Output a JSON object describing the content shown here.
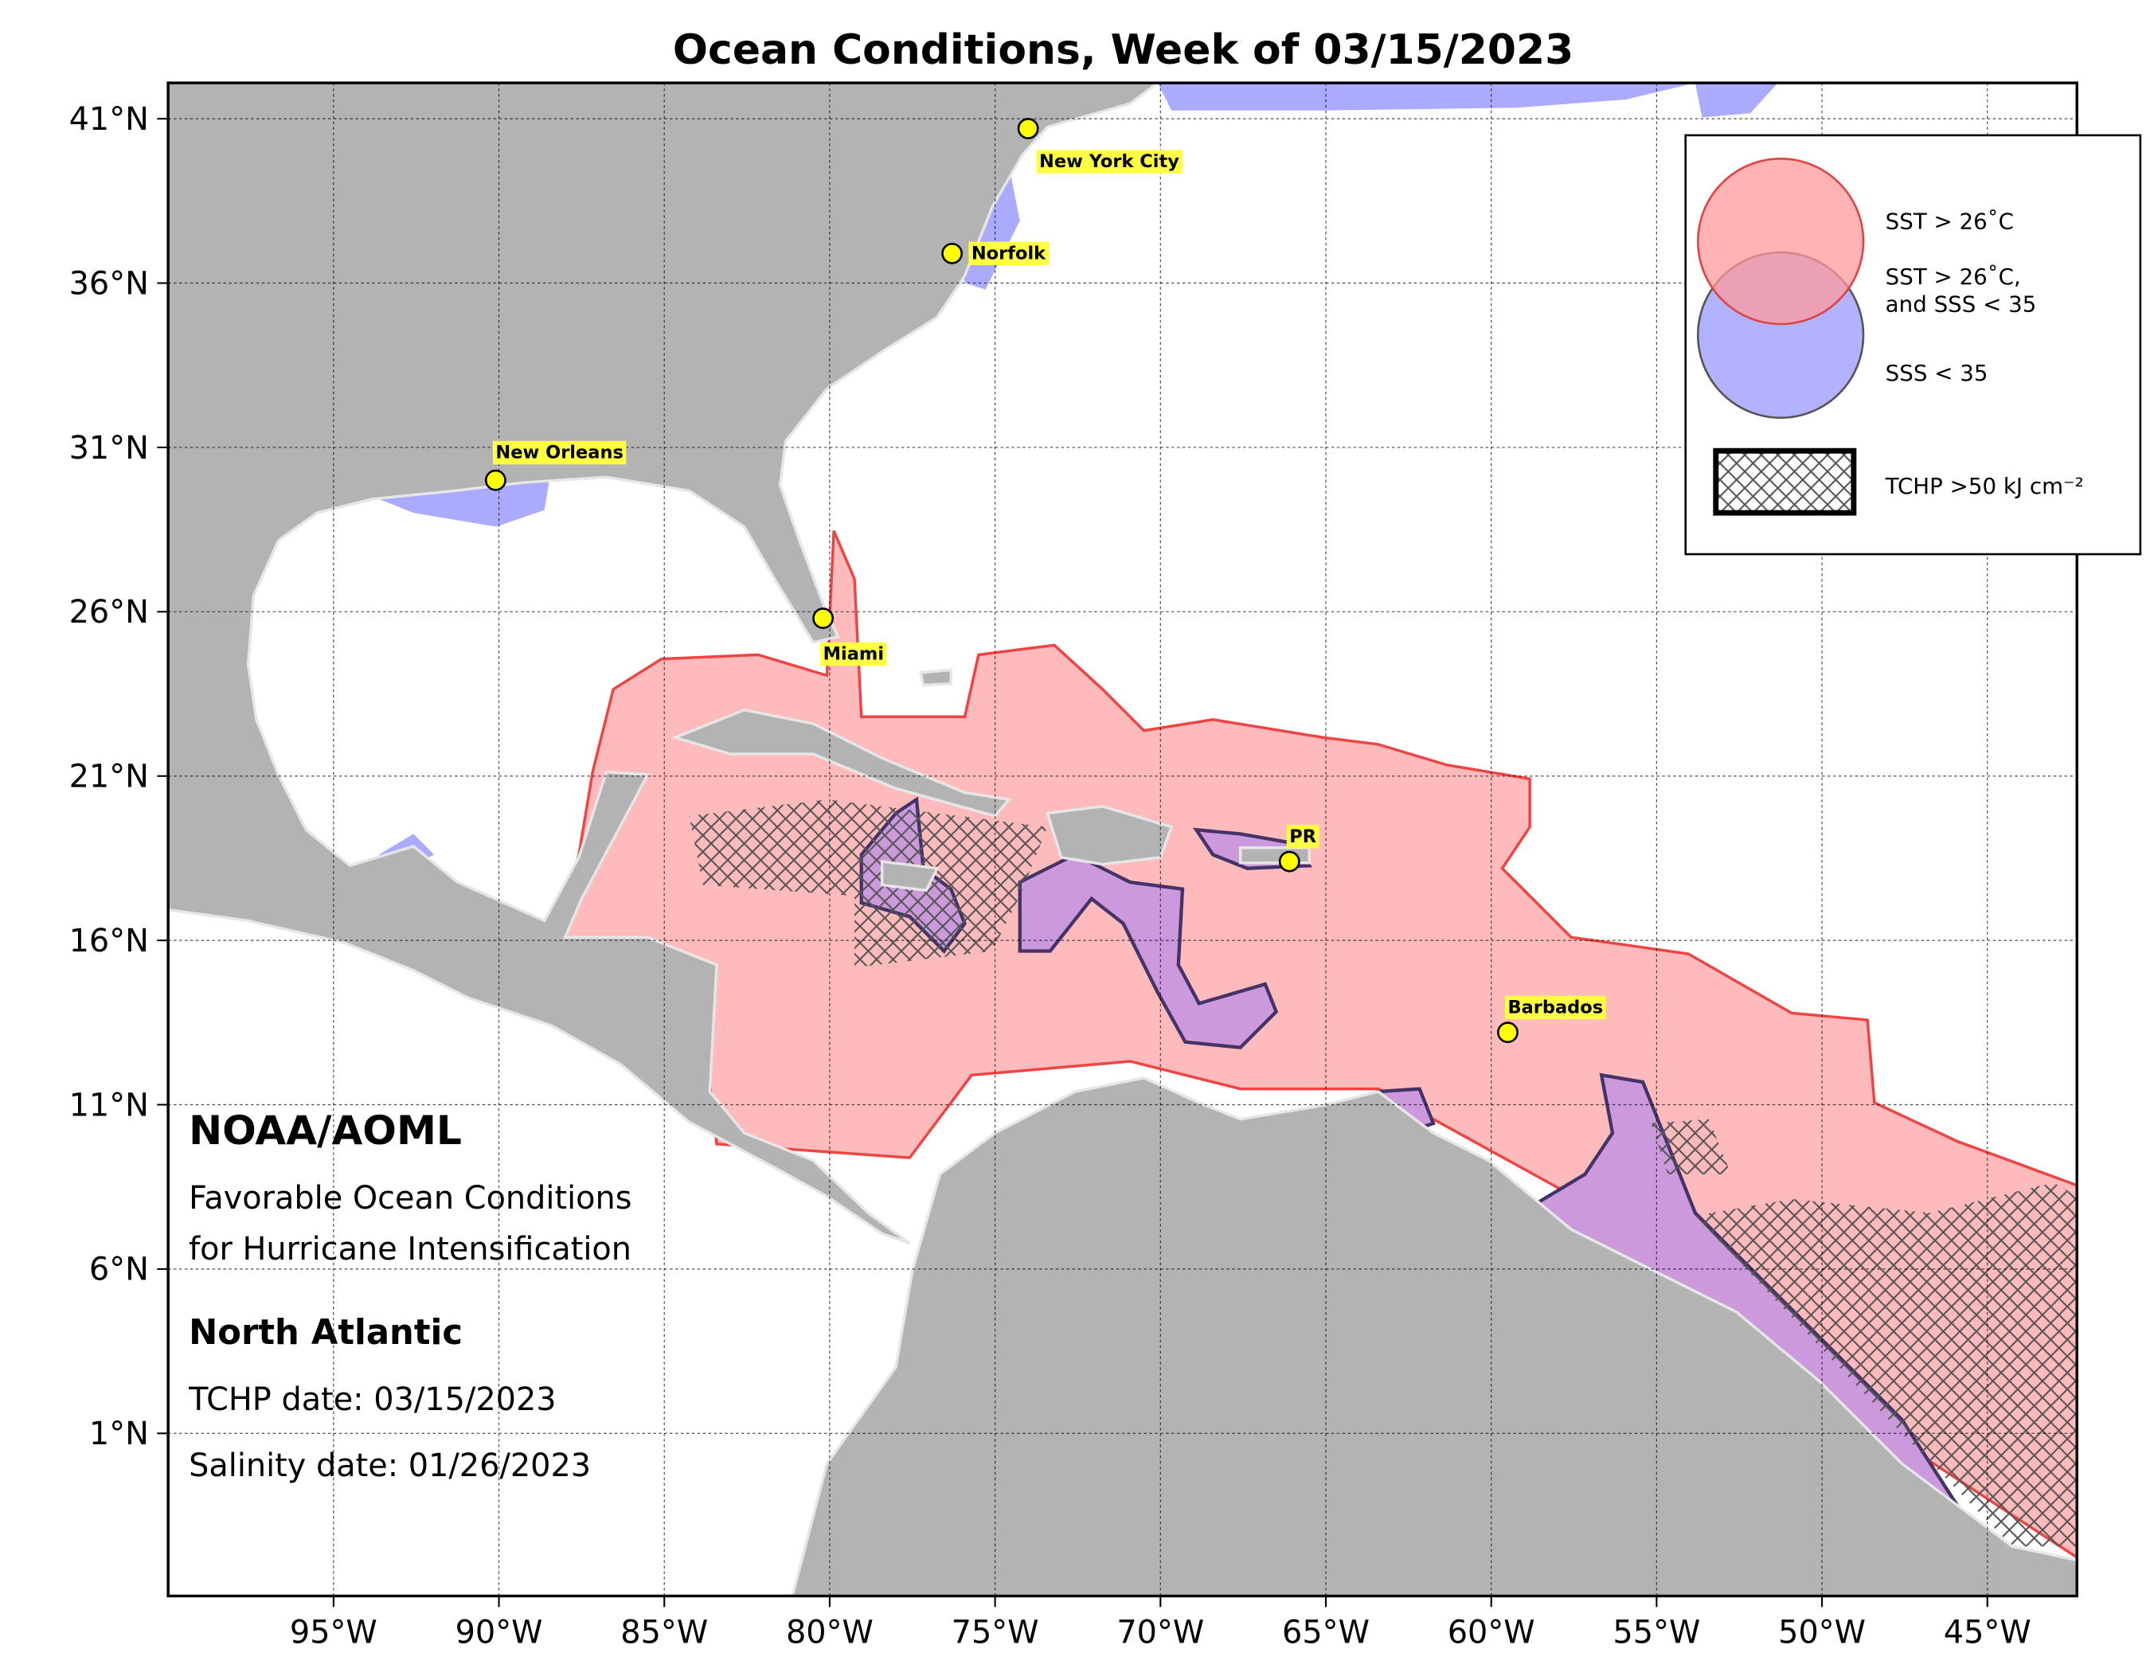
{
  "title": "Ocean Conditions, Week of 03/15/2023",
  "map": {
    "lon_ticks": [
      {
        "value": -95,
        "label": "95°W"
      },
      {
        "value": -90,
        "label": "90°W"
      },
      {
        "value": -85,
        "label": "85°W"
      },
      {
        "value": -80,
        "label": "80°W"
      },
      {
        "value": -75,
        "label": "75°W"
      },
      {
        "value": -70,
        "label": "70°W"
      },
      {
        "value": -65,
        "label": "65°W"
      },
      {
        "value": -60,
        "label": "60°W"
      },
      {
        "value": -55,
        "label": "55°W"
      },
      {
        "value": -50,
        "label": "50°W"
      },
      {
        "value": -45,
        "label": "45°W"
      }
    ],
    "lat_ticks": [
      {
        "value": 41,
        "label": "41°N"
      },
      {
        "value": 36,
        "label": "36°N"
      },
      {
        "value": 31,
        "label": "31°N"
      },
      {
        "value": 26,
        "label": "26°N"
      },
      {
        "value": 21,
        "label": "21°N"
      },
      {
        "value": 16,
        "label": "16°N"
      },
      {
        "value": 11,
        "label": "11°N"
      },
      {
        "value": 6,
        "label": "6°N"
      },
      {
        "value": 1,
        "label": "1°N"
      }
    ],
    "cities": [
      {
        "name": "New York City",
        "lon": -74.0,
        "lat": 40.7
      },
      {
        "name": "Norfolk",
        "lon": -76.3,
        "lat": 36.9
      },
      {
        "name": "New Orleans",
        "lon": -90.1,
        "lat": 30.0
      },
      {
        "name": "Miami",
        "lon": -80.2,
        "lat": 25.8
      },
      {
        "name": "PR",
        "lon": -66.1,
        "lat": 18.4
      },
      {
        "name": "Barbados",
        "lon": -59.5,
        "lat": 13.2
      }
    ]
  },
  "legend": {
    "sst": "SST > 26˚C",
    "both": [
      "SST > 26˚C,",
      "and SSS < 35"
    ],
    "sss": "SSS < 35",
    "tchp": "TCHP >50 kJ cm⁻²"
  },
  "info": {
    "org": "NOAA/AOML",
    "description": [
      "Favorable Ocean Conditions",
      "for Hurricane Intensification"
    ],
    "region": "North Atlantic",
    "tchp_date": "TCHP date: 03/15/2023",
    "salinity_date": "Salinity date: 01/26/2023"
  }
}
